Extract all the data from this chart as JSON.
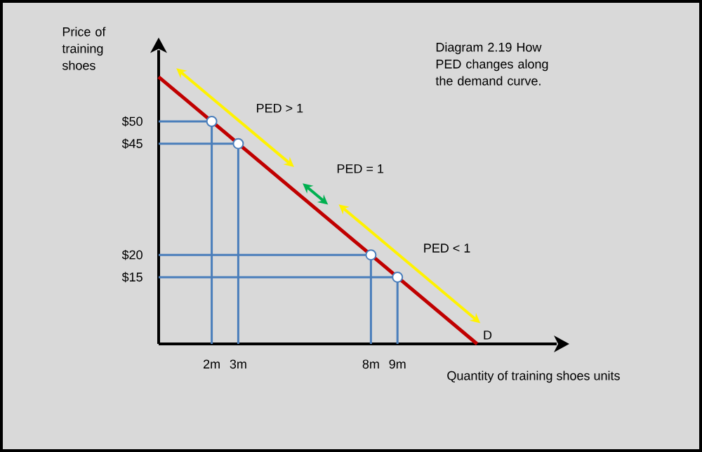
{
  "chart_data": {
    "type": "line",
    "title": "Diagram 2.19 How PED changes along the demand curve.",
    "xlabel": "Quantity of training shoes units",
    "ylabel": "Price of training shoes",
    "annotations": [
      "PED > 1",
      "PED = 1",
      "PED < 1"
    ],
    "xlim": [
      0,
      15
    ],
    "ylim": [
      0,
      66
    ],
    "xticks": [
      {
        "value": 2,
        "label": "2m"
      },
      {
        "value": 3,
        "label": "3m"
      },
      {
        "value": 8,
        "label": "8m"
      },
      {
        "value": 9,
        "label": "9m"
      }
    ],
    "yticks": [
      {
        "value": 15,
        "label": "$15"
      },
      {
        "value": 20,
        "label": "$20"
      },
      {
        "value": 45,
        "label": "$45"
      },
      {
        "value": 50,
        "label": "$50"
      }
    ],
    "grid": false,
    "series": [
      {
        "color": "#4a7ebb",
        "x": [
          0,
          2,
          2
        ],
        "values": [
          50,
          50,
          0
        ]
      },
      {
        "color": "#4a7ebb",
        "x": [
          0,
          3,
          3
        ],
        "values": [
          45,
          45,
          0
        ]
      },
      {
        "color": "#4a7ebb",
        "x": [
          0,
          8,
          8
        ],
        "values": [
          20,
          20,
          0
        ]
      },
      {
        "color": "#4a7ebb",
        "x": [
          0,
          9,
          9
        ],
        "values": [
          15,
          15,
          0
        ]
      },
      {
        "name": "D",
        "color": "#c00000",
        "x": [
          0,
          12
        ],
        "values": [
          60,
          0
        ]
      },
      {
        "type": "scatter",
        "color": "#4a7ebb",
        "marker": "circle",
        "x": [
          2,
          3,
          8,
          9
        ],
        "values": [
          50,
          45,
          20,
          15
        ]
      }
    ]
  }
}
